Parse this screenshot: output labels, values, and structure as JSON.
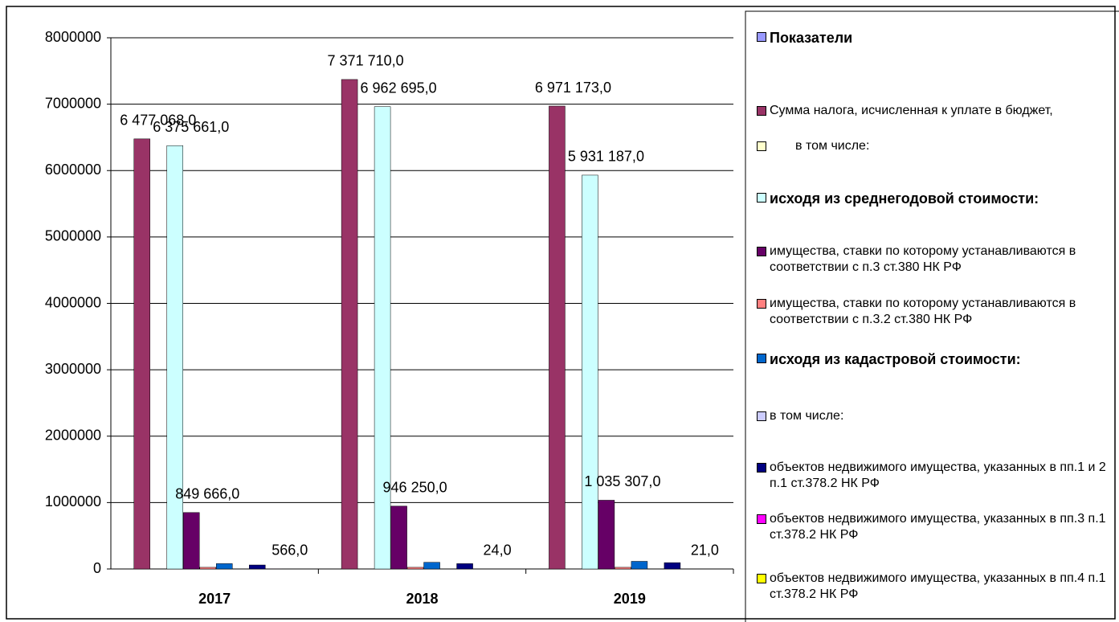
{
  "chart_data": {
    "type": "bar",
    "categories": [
      "2017",
      "2018",
      "2019"
    ],
    "ylim": [
      0,
      8000000
    ],
    "yticks": [
      0,
      1000000,
      2000000,
      3000000,
      4000000,
      5000000,
      6000000,
      7000000,
      8000000
    ],
    "grid": true,
    "legend": "right",
    "series": [
      {
        "name": "Показатели",
        "color": "#9999FF",
        "values": [
          null,
          null,
          null
        ]
      },
      {
        "name": "Сумма налога, исчисленная к уплате в бюджет,",
        "color": "#993366",
        "values": [
          6477068,
          7371710,
          6971173
        ],
        "value_labels": [
          "6 477 068,0",
          "7 371 710,0",
          "6 971 173,0"
        ]
      },
      {
        "name": "в том числе:",
        "color": "#FFFFCC",
        "values": [
          null,
          null,
          null
        ]
      },
      {
        "name": "исходя из среднегодовой стоимости:",
        "color": "#CCFFFF",
        "values": [
          6375661,
          6962695,
          5931187
        ],
        "value_labels": [
          "6 375 661,0",
          "6 962 695,0",
          "5 931 187,0"
        ]
      },
      {
        "name": "имущества, ставки по которому устанавливаются в соответствии с п.3 ст.380 НК РФ",
        "color": "#660066",
        "values": [
          849666,
          946250,
          1035307
        ],
        "value_labels": [
          "849 666,0",
          "946 250,0",
          "1 035 307,0"
        ]
      },
      {
        "name": "имущества, ставки по которому устанавливаются в соответствии с п.3.2 ст.380 НК РФ",
        "color": "#FF8080",
        "values": [
          25000,
          25000,
          25000
        ]
      },
      {
        "name": "исходя из кадастровой стоимости:",
        "color": "#0066CC",
        "values": [
          80000,
          100000,
          115000
        ]
      },
      {
        "name": "в том числе:",
        "color": "#CCCCFF",
        "values": [
          null,
          null,
          null
        ]
      },
      {
        "name": "объектов недвижимого имущества, указанных в пп.1 и 2 п.1 ст.378.2 НК РФ",
        "color": "#000080",
        "values": [
          60000,
          80000,
          95000
        ]
      },
      {
        "name": "объектов недвижимого имущества, указанных в пп.3 п.1 ст.378.2 НК РФ",
        "color": "#FF00FF",
        "values": [
          566,
          24,
          21
        ],
        "value_labels": [
          "566,0",
          "24,0",
          "21,0"
        ]
      },
      {
        "name": "объектов недвижимого имущества, указанных в пп.4 п.1 ст.378.2 НК РФ",
        "color": "#FFFF00",
        "values": [
          null,
          null,
          null
        ]
      }
    ]
  }
}
